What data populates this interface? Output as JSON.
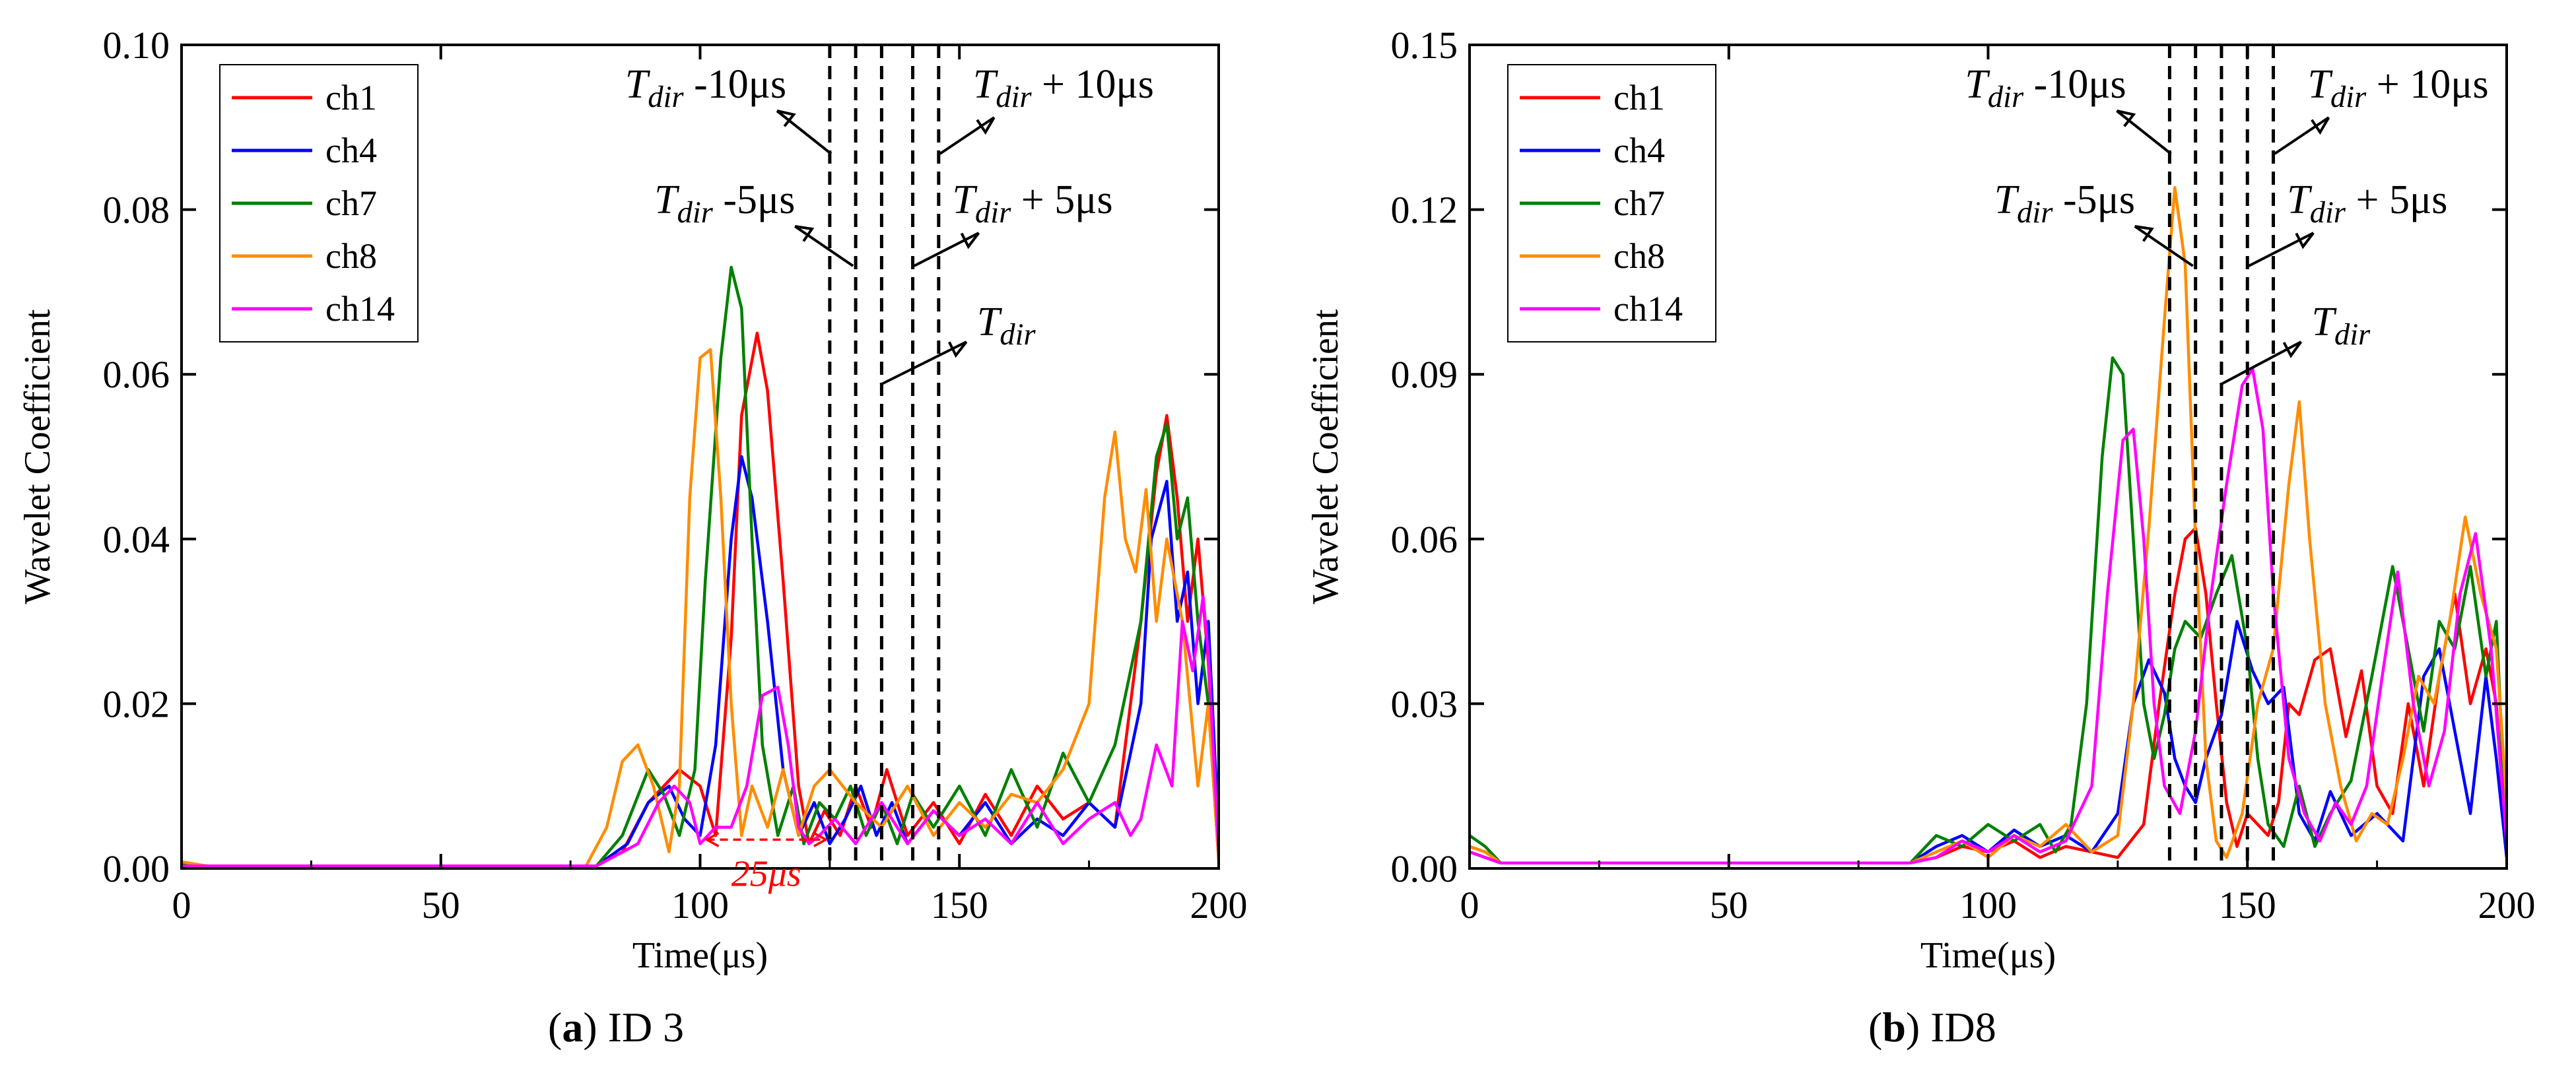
{
  "colors": {
    "ch1": "#ff0000",
    "ch4": "#0000ff",
    "ch7": "#008000",
    "ch8": "#ff8c00",
    "ch14": "#ff00ff",
    "marker": "#000000",
    "delay": "#ff0000"
  },
  "chart_data": [
    {
      "type": "line",
      "id": "a",
      "caption": {
        "label": "a",
        "text": "ID 3"
      },
      "xlabel": "Time(μs)",
      "ylabel": "Wavelet Coefficient",
      "xlim": [
        0,
        200
      ],
      "ylim": [
        0,
        0.1
      ],
      "xticks": [
        "0",
        "50",
        "100",
        "150",
        "200"
      ],
      "xtick_values": [
        0,
        50,
        100,
        150,
        200
      ],
      "yticks": [
        "0.00",
        "0.02",
        "0.04",
        "0.06",
        "0.08",
        "0.10"
      ],
      "ytick_values": [
        0,
        0.02,
        0.04,
        0.06,
        0.08,
        0.1
      ],
      "legend": {
        "position": "top-left",
        "entries": [
          "ch1",
          "ch4",
          "ch7",
          "ch8",
          "ch14"
        ]
      },
      "vlines": [
        125,
        130,
        135,
        141,
        146
      ],
      "annotations": [
        {
          "label": "T_dir - 10μs",
          "text": "-10μs"
        },
        {
          "label": "T_dir + 10μs",
          "text": "+ 10μs"
        },
        {
          "label": "T_dir - 5μs",
          "text": "-5μs"
        },
        {
          "label": "T_dir + 5μs",
          "text": "+ 5μs"
        },
        {
          "label": "T_dir",
          "text": ""
        }
      ],
      "delay_label": "25μs",
      "delay_range": [
        100,
        125
      ],
      "series": [
        {
          "name": "ch1",
          "x": [
            0,
            5,
            80,
            85,
            90,
            96,
            100,
            103,
            106,
            108,
            111,
            113,
            116,
            119,
            121,
            124,
            127,
            130,
            133,
            136,
            140,
            145,
            150,
            155,
            160,
            165,
            170,
            175,
            180,
            185,
            188,
            190,
            192,
            194,
            196,
            198,
            200
          ],
          "y": [
            0.0005,
            0.0003,
            0.0003,
            0.002,
            0.008,
            0.012,
            0.01,
            0.004,
            0.028,
            0.055,
            0.065,
            0.058,
            0.035,
            0.01,
            0.003,
            0.007,
            0.004,
            0.01,
            0.005,
            0.012,
            0.004,
            0.008,
            0.003,
            0.009,
            0.004,
            0.01,
            0.006,
            0.008,
            0.005,
            0.03,
            0.048,
            0.055,
            0.045,
            0.03,
            0.04,
            0.025,
            0.002
          ]
        },
        {
          "name": "ch4",
          "x": [
            0,
            5,
            80,
            86,
            90,
            94,
            97,
            100,
            103,
            106,
            108,
            110,
            113,
            116,
            119,
            122,
            125,
            128,
            131,
            134,
            137,
            140,
            145,
            150,
            155,
            160,
            165,
            170,
            175,
            180,
            185,
            187,
            190,
            192,
            194,
            196,
            198,
            200
          ],
          "y": [
            0.0005,
            0.0003,
            0.0003,
            0.003,
            0.008,
            0.01,
            0.006,
            0.004,
            0.015,
            0.04,
            0.05,
            0.045,
            0.03,
            0.012,
            0.004,
            0.008,
            0.003,
            0.006,
            0.01,
            0.004,
            0.008,
            0.003,
            0.007,
            0.004,
            0.008,
            0.003,
            0.006,
            0.004,
            0.008,
            0.005,
            0.02,
            0.04,
            0.047,
            0.03,
            0.036,
            0.02,
            0.03,
            0.004
          ]
        },
        {
          "name": "ch7",
          "x": [
            0,
            5,
            80,
            85,
            90,
            93,
            96,
            99,
            101,
            104,
            106,
            108,
            110,
            112,
            115,
            118,
            120,
            123,
            126,
            129,
            132,
            135,
            138,
            141,
            145,
            150,
            155,
            160,
            165,
            170,
            175,
            180,
            185,
            188,
            190,
            192,
            194,
            196,
            198,
            200
          ],
          "y": [
            0.0005,
            0.0003,
            0.0003,
            0.004,
            0.012,
            0.009,
            0.004,
            0.012,
            0.035,
            0.062,
            0.073,
            0.068,
            0.04,
            0.015,
            0.004,
            0.01,
            0.003,
            0.008,
            0.006,
            0.01,
            0.004,
            0.008,
            0.003,
            0.009,
            0.005,
            0.01,
            0.004,
            0.012,
            0.005,
            0.014,
            0.008,
            0.015,
            0.03,
            0.05,
            0.054,
            0.04,
            0.045,
            0.03,
            0.02,
            0.001
          ]
        },
        {
          "name": "ch8",
          "x": [
            0,
            5,
            78,
            82,
            85,
            88,
            91,
            94,
            96,
            98,
            100,
            102,
            104,
            106,
            108,
            110,
            113,
            116,
            119,
            122,
            125,
            130,
            135,
            140,
            145,
            150,
            155,
            160,
            165,
            170,
            175,
            178,
            180,
            182,
            184,
            186,
            188,
            190,
            193,
            196,
            198,
            200
          ],
          "y": [
            0.0008,
            0.0003,
            0.0003,
            0.005,
            0.013,
            0.015,
            0.01,
            0.002,
            0.01,
            0.045,
            0.062,
            0.063,
            0.045,
            0.02,
            0.004,
            0.01,
            0.005,
            0.012,
            0.004,
            0.01,
            0.012,
            0.008,
            0.005,
            0.01,
            0.004,
            0.008,
            0.005,
            0.009,
            0.008,
            0.012,
            0.02,
            0.045,
            0.053,
            0.04,
            0.036,
            0.046,
            0.03,
            0.04,
            0.03,
            0.01,
            0.02,
            0.001
          ]
        },
        {
          "name": "ch14",
          "x": [
            0,
            5,
            80,
            88,
            92,
            95,
            98,
            100,
            103,
            106,
            109,
            112,
            115,
            117,
            119,
            121,
            123,
            126,
            130,
            135,
            140,
            145,
            150,
            155,
            160,
            165,
            170,
            175,
            180,
            183,
            185,
            188,
            191,
            193,
            195,
            197,
            198,
            200
          ],
          "y": [
            0.0003,
            0.0003,
            0.0003,
            0.003,
            0.008,
            0.01,
            0.008,
            0.003,
            0.005,
            0.005,
            0.01,
            0.021,
            0.022,
            0.015,
            0.005,
            0.003,
            0.004,
            0.006,
            0.003,
            0.008,
            0.003,
            0.007,
            0.004,
            0.006,
            0.003,
            0.008,
            0.003,
            0.006,
            0.008,
            0.004,
            0.006,
            0.015,
            0.01,
            0.03,
            0.024,
            0.033,
            0.026,
            0.002
          ]
        }
      ]
    },
    {
      "type": "line",
      "id": "b",
      "caption": {
        "label": "b",
        "text": "ID8"
      },
      "xlabel": "Time(μs)",
      "ylabel": "Wavelet Coefficient",
      "xlim": [
        0,
        200
      ],
      "ylim": [
        0,
        0.15
      ],
      "xticks": [
        "0",
        "50",
        "100",
        "150",
        "200"
      ],
      "xtick_values": [
        0,
        50,
        100,
        150,
        200
      ],
      "yticks": [
        "0.00",
        "0.03",
        "0.06",
        "0.09",
        "0.12",
        "0.15"
      ],
      "ytick_values": [
        0,
        0.03,
        0.06,
        0.09,
        0.12,
        0.15
      ],
      "legend": {
        "position": "top-left",
        "entries": [
          "ch1",
          "ch4",
          "ch7",
          "ch8",
          "ch14"
        ]
      },
      "vlines": [
        135,
        140,
        145,
        150,
        155
      ],
      "annotations": [
        {
          "label": "T_dir - 10μs",
          "text": "-10μs"
        },
        {
          "label": "T_dir + 10μs",
          "text": "+ 10μs"
        },
        {
          "label": "T_dir - 5μs",
          "text": "-5μs"
        },
        {
          "label": "T_dir + 5μs",
          "text": "+ 5μs"
        },
        {
          "label": "T_dir",
          "text": ""
        }
      ],
      "series": [
        {
          "name": "ch1",
          "x": [
            0,
            3,
            6,
            10,
            50,
            85,
            90,
            95,
            100,
            105,
            110,
            115,
            120,
            125,
            130,
            133,
            136,
            138,
            140,
            142,
            144,
            146,
            148,
            150,
            152,
            154,
            156,
            158,
            160,
            163,
            166,
            169,
            172,
            175,
            178,
            181,
            184,
            187,
            190,
            193,
            196,
            198,
            200
          ],
          "y": [
            0.004,
            0.003,
            0.001,
            0.001,
            0.001,
            0.001,
            0.002,
            0.004,
            0.003,
            0.005,
            0.002,
            0.004,
            0.003,
            0.002,
            0.008,
            0.03,
            0.05,
            0.06,
            0.062,
            0.05,
            0.03,
            0.012,
            0.004,
            0.01,
            0.008,
            0.006,
            0.012,
            0.03,
            0.028,
            0.038,
            0.04,
            0.024,
            0.036,
            0.015,
            0.01,
            0.03,
            0.015,
            0.035,
            0.05,
            0.03,
            0.04,
            0.03,
            0.002
          ]
        },
        {
          "name": "ch4",
          "x": [
            0,
            3,
            6,
            10,
            50,
            85,
            90,
            95,
            100,
            105,
            110,
            115,
            120,
            125,
            128,
            131,
            134,
            136,
            138,
            140,
            142,
            145,
            148,
            151,
            154,
            157,
            160,
            163,
            166,
            170,
            175,
            180,
            184,
            187,
            190,
            193,
            196,
            198,
            200
          ],
          "y": [
            0.003,
            0.002,
            0.001,
            0.001,
            0.001,
            0.001,
            0.004,
            0.006,
            0.003,
            0.007,
            0.004,
            0.006,
            0.003,
            0.01,
            0.03,
            0.038,
            0.032,
            0.02,
            0.015,
            0.012,
            0.02,
            0.028,
            0.045,
            0.036,
            0.03,
            0.033,
            0.01,
            0.005,
            0.014,
            0.006,
            0.01,
            0.005,
            0.035,
            0.04,
            0.025,
            0.01,
            0.035,
            0.02,
            0.002
          ]
        },
        {
          "name": "ch7",
          "x": [
            0,
            3,
            6,
            10,
            50,
            85,
            90,
            95,
            100,
            105,
            110,
            113,
            116,
            119,
            122,
            124,
            126,
            128,
            130,
            132,
            134,
            136,
            138,
            141,
            144,
            147,
            150,
            152,
            154,
            157,
            160,
            163,
            166,
            170,
            174,
            178,
            181,
            184,
            187,
            190,
            193,
            196,
            198,
            200
          ],
          "y": [
            0.006,
            0.004,
            0.001,
            0.001,
            0.001,
            0.001,
            0.006,
            0.004,
            0.008,
            0.005,
            0.008,
            0.003,
            0.008,
            0.03,
            0.075,
            0.093,
            0.09,
            0.06,
            0.03,
            0.02,
            0.028,
            0.04,
            0.045,
            0.042,
            0.05,
            0.057,
            0.04,
            0.02,
            0.008,
            0.004,
            0.015,
            0.004,
            0.01,
            0.016,
            0.035,
            0.055,
            0.04,
            0.025,
            0.045,
            0.04,
            0.055,
            0.035,
            0.045,
            0.004
          ]
        },
        {
          "name": "ch8",
          "x": [
            0,
            3,
            6,
            10,
            50,
            85,
            90,
            95,
            100,
            105,
            110,
            115,
            120,
            125,
            128,
            131,
            134,
            136,
            138,
            140,
            142,
            144,
            146,
            149,
            152,
            155,
            158,
            160,
            162,
            165,
            168,
            171,
            174,
            177,
            180,
            183,
            186,
            189,
            192,
            195,
            198,
            200
          ],
          "y": [
            0.004,
            0.003,
            0.001,
            0.001,
            0.001,
            0.001,
            0.003,
            0.005,
            0.002,
            0.006,
            0.004,
            0.008,
            0.003,
            0.006,
            0.03,
            0.062,
            0.1,
            0.124,
            0.11,
            0.06,
            0.02,
            0.005,
            0.002,
            0.01,
            0.03,
            0.04,
            0.07,
            0.085,
            0.06,
            0.03,
            0.015,
            0.005,
            0.01,
            0.008,
            0.02,
            0.035,
            0.03,
            0.045,
            0.064,
            0.05,
            0.04,
            0.012
          ]
        },
        {
          "name": "ch14",
          "x": [
            0,
            3,
            6,
            10,
            50,
            85,
            90,
            95,
            100,
            105,
            110,
            115,
            120,
            123,
            126,
            128,
            130,
            132,
            134,
            137,
            140,
            143,
            146,
            149,
            151,
            153,
            155,
            158,
            161,
            164,
            167,
            170,
            173,
            176,
            179,
            182,
            185,
            188,
            191,
            194,
            197,
            200
          ],
          "y": [
            0.003,
            0.002,
            0.001,
            0.001,
            0.001,
            0.001,
            0.002,
            0.005,
            0.003,
            0.006,
            0.003,
            0.005,
            0.015,
            0.05,
            0.078,
            0.08,
            0.06,
            0.03,
            0.015,
            0.01,
            0.025,
            0.05,
            0.07,
            0.088,
            0.091,
            0.08,
            0.05,
            0.02,
            0.01,
            0.005,
            0.012,
            0.008,
            0.015,
            0.035,
            0.054,
            0.03,
            0.015,
            0.025,
            0.05,
            0.061,
            0.04,
            0.005
          ]
        }
      ]
    }
  ]
}
